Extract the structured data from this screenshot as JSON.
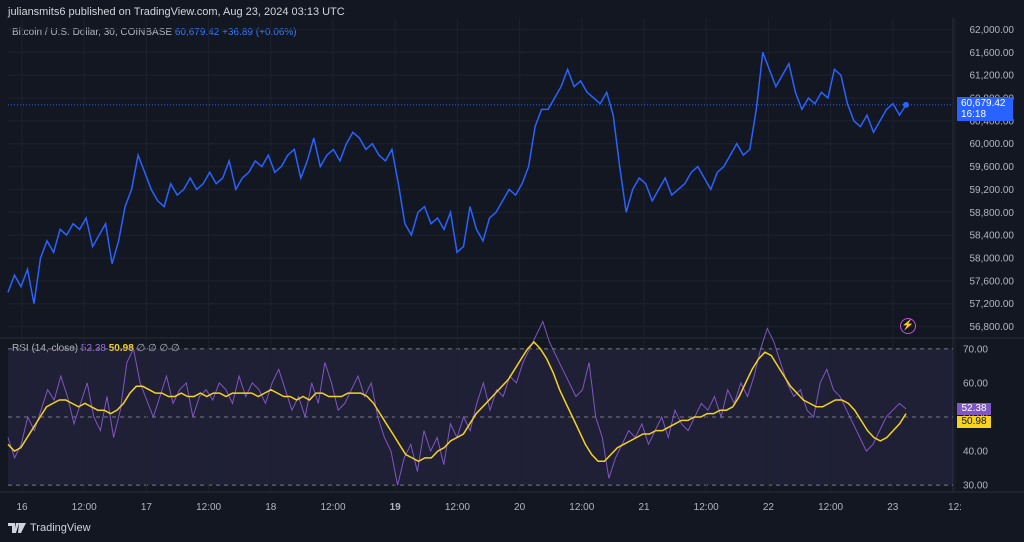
{
  "header": {
    "publisher": "juliansmits6 published on TradingView.com, Aug 23, 2024 03:13 UTC"
  },
  "legend": {
    "symbol": "Bitcoin / U.S. Dollar, 30, COINBASE",
    "last": "60,679.42",
    "change": "+36.89 (+0.06%)"
  },
  "rsi_legend": {
    "name": "RSI (14, close)",
    "rsi_value": "52.38",
    "ma_value": "50.98",
    "symbols": "∅ ∅ ∅ ∅"
  },
  "price_tag": {
    "price": "60,679.42",
    "countdown": "16:18"
  },
  "rsi_tags": {
    "rsi": "52.38",
    "ma": "50.98"
  },
  "footer": {
    "brand": "TradingView"
  },
  "colors": {
    "price_line": "#2962ff",
    "rsi_line": "#7e57c2",
    "ma_line": "#f5d31f",
    "background": "#131722"
  },
  "chart_data": [
    {
      "type": "line",
      "series": [
        {
          "name": "Bitcoin / U.S. Dollar",
          "values": [
            57400,
            57700,
            57500,
            57800,
            57200,
            58000,
            58300,
            58100,
            58500,
            58400,
            58600,
            58500,
            58700,
            58200,
            58400,
            58600,
            57900,
            58300,
            58900,
            59200,
            59800,
            59500,
            59200,
            59000,
            58900,
            59300,
            59100,
            59200,
            59400,
            59200,
            59300,
            59500,
            59300,
            59400,
            59700,
            59200,
            59400,
            59500,
            59700,
            59600,
            59800,
            59500,
            59600,
            59800,
            59900,
            59400,
            59700,
            60100,
            59600,
            59800,
            59900,
            59700,
            60000,
            60200,
            60100,
            59900,
            60000,
            59800,
            59700,
            59900,
            59300,
            58600,
            58400,
            58800,
            58900,
            58600,
            58700,
            58500,
            58800,
            58100,
            58200,
            58900,
            58500,
            58300,
            58700,
            58800,
            59000,
            59200,
            59100,
            59300,
            59600,
            60300,
            60600,
            60600,
            60800,
            61000,
            61300,
            61000,
            61100,
            60900,
            60800,
            60700,
            60900,
            60500,
            59600,
            58800,
            59200,
            59400,
            59300,
            59000,
            59200,
            59400,
            59100,
            59200,
            59300,
            59500,
            59600,
            59400,
            59200,
            59500,
            59600,
            59800,
            60000,
            59800,
            59900,
            60600,
            61600,
            61300,
            61000,
            61200,
            61400,
            60900,
            60600,
            60800,
            60700,
            60900,
            60800,
            61300,
            61200,
            60700,
            60400,
            60300,
            60500,
            60200,
            60400,
            60600,
            60700,
            60500,
            60679
          ]
        }
      ],
      "ylim": [
        56600,
        62200
      ],
      "y_ticks": [
        "62,000.00",
        "61,600.00",
        "61,200.00",
        "60,800.00",
        "60,400.00",
        "60,000.00",
        "59,600.00",
        "59,200.00",
        "58,800.00",
        "58,400.00",
        "58,000.00",
        "57,600.00",
        "57,200.00",
        "56,800.00"
      ]
    },
    {
      "type": "line",
      "series": [
        {
          "name": "RSI (14, close)",
          "values": [
            44,
            38,
            42,
            50,
            46,
            52,
            58,
            55,
            62,
            56,
            48,
            54,
            60,
            50,
            46,
            56,
            44,
            52,
            66,
            70,
            60,
            55,
            50,
            56,
            62,
            54,
            58,
            60,
            50,
            56,
            58,
            55,
            60,
            58,
            54,
            62,
            56,
            60,
            58,
            54,
            60,
            64,
            58,
            52,
            56,
            50,
            60,
            54,
            66,
            60,
            52,
            54,
            58,
            62,
            56,
            60,
            50,
            44,
            40,
            30,
            38,
            42,
            34,
            46,
            40,
            44,
            36,
            48,
            44,
            50,
            46,
            54,
            60,
            52,
            58,
            56,
            62,
            60,
            66,
            70,
            74,
            78,
            72,
            68,
            64,
            60,
            56,
            58,
            66,
            50,
            44,
            32,
            38,
            42,
            46,
            44,
            48,
            42,
            46,
            50,
            44,
            52,
            48,
            46,
            50,
            54,
            52,
            56,
            50,
            58,
            54,
            60,
            56,
            62,
            70,
            76,
            72,
            66,
            60,
            56,
            58,
            52,
            50,
            60,
            64,
            58,
            56,
            52,
            48,
            44,
            40,
            42,
            46,
            50,
            52,
            54,
            52.38
          ]
        },
        {
          "name": "MA",
          "values": [
            42,
            40,
            41,
            44,
            47,
            50,
            53,
            54,
            55,
            55,
            54,
            53,
            54,
            53,
            52,
            52,
            51,
            52,
            54,
            57,
            59,
            59,
            58,
            57,
            57,
            56,
            56,
            57,
            56,
            56,
            57,
            56,
            57,
            57,
            56,
            57,
            57,
            57,
            57,
            56,
            57,
            58,
            57,
            56,
            56,
            55,
            56,
            55,
            57,
            57,
            56,
            56,
            56,
            57,
            57,
            57,
            56,
            54,
            51,
            48,
            45,
            42,
            39,
            38,
            37,
            38,
            38,
            40,
            41,
            43,
            44,
            45,
            48,
            51,
            53,
            55,
            57,
            59,
            61,
            64,
            67,
            70,
            72,
            70,
            67,
            63,
            58,
            54,
            50,
            46,
            42,
            39,
            37,
            37,
            39,
            41,
            42,
            43,
            44,
            45,
            45,
            46,
            46,
            47,
            48,
            49,
            49,
            50,
            50,
            51,
            51,
            52,
            52,
            53,
            56,
            60,
            64,
            67,
            69,
            68,
            65,
            62,
            59,
            57,
            55,
            54,
            53,
            53,
            54,
            55,
            55,
            54,
            52,
            49,
            46,
            44,
            43,
            44,
            46,
            48,
            50.98
          ]
        }
      ],
      "ylim": [
        28,
        72
      ],
      "y_ticks": [
        "70.00",
        "60.00",
        "50.00",
        "40.00",
        "30.00"
      ]
    }
  ],
  "x_ticks": [
    "16",
    "12:00",
    "17",
    "12:00",
    "18",
    "12:00",
    "19",
    "12:00",
    "20",
    "12:00",
    "21",
    "12:00",
    "22",
    "12:00",
    "23",
    "12:"
  ]
}
